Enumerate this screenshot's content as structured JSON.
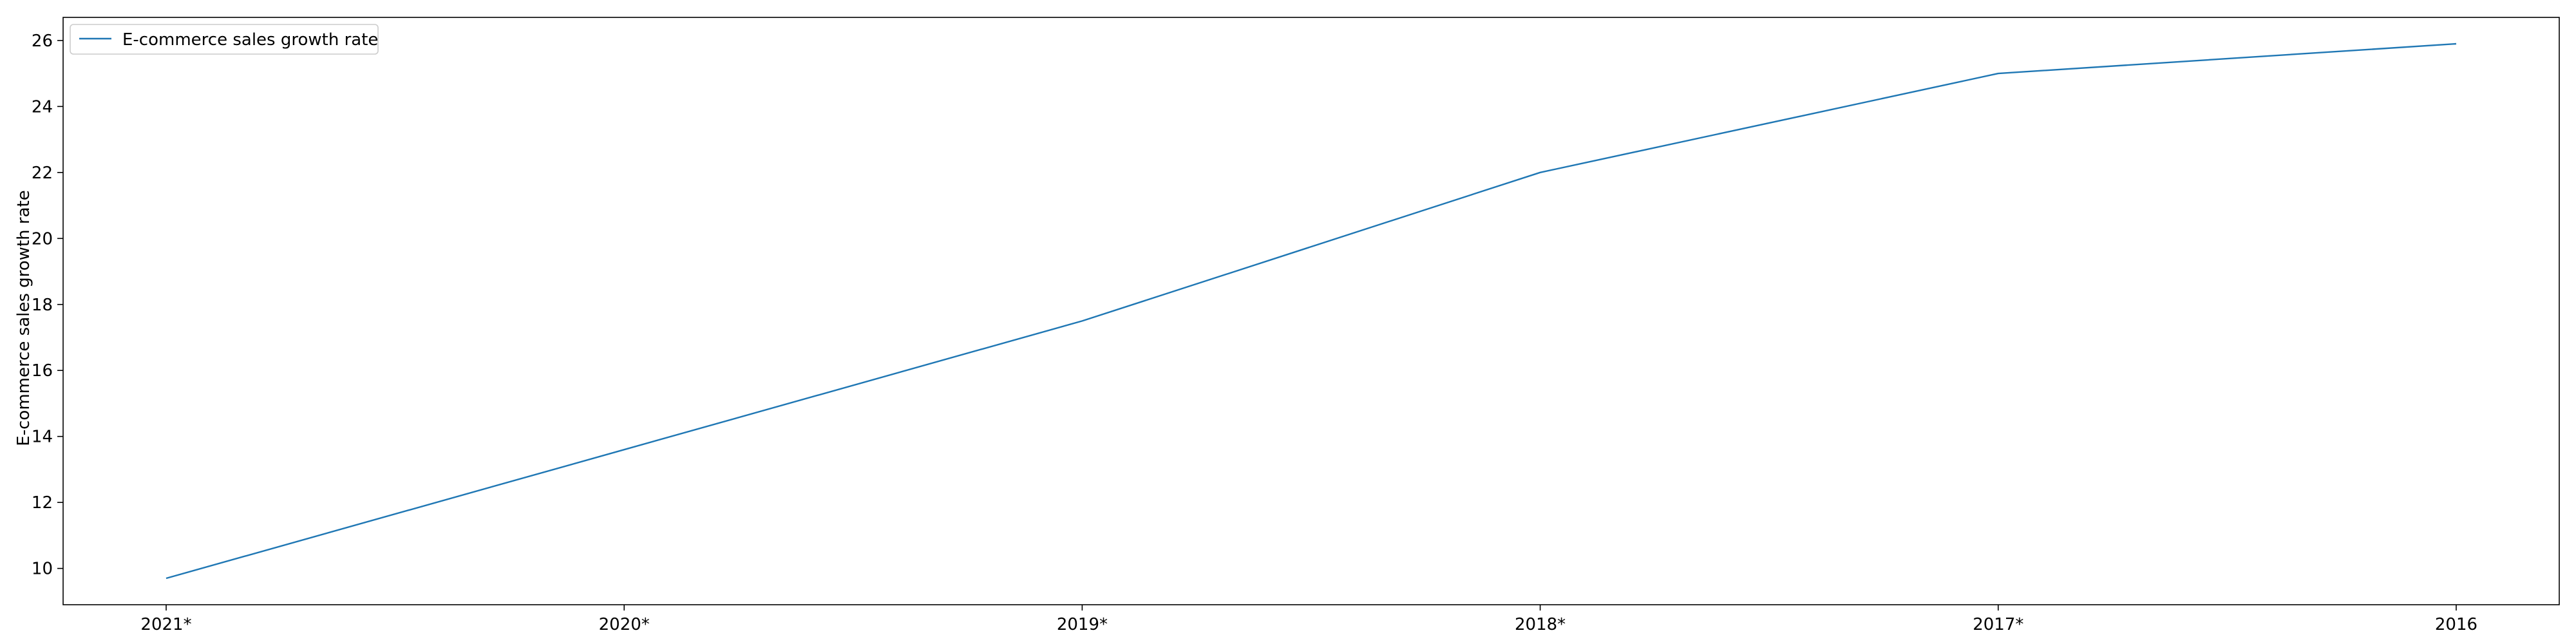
{
  "chart_data": {
    "type": "line",
    "categories": [
      "2021*",
      "2020*",
      "2019*",
      "2018*",
      "2017*",
      "2016"
    ],
    "series": [
      {
        "name": "E-commerce sales growth rate",
        "values": [
          9.7,
          13.6,
          17.5,
          22.0,
          25.0,
          25.9
        ],
        "color": "#1f77b4"
      }
    ],
    "title": "",
    "xlabel": "",
    "ylabel": "E-commerce sales growth rate",
    "ylim": [
      8.9,
      26.7
    ],
    "yticks": [
      10,
      12,
      14,
      16,
      18,
      20,
      22,
      24,
      26
    ],
    "grid": false,
    "legend_position": "upper-left"
  }
}
